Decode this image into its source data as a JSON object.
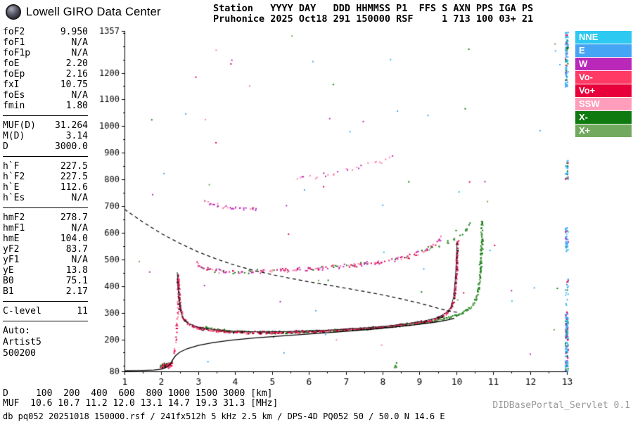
{
  "header": {
    "brand": "Lowell GIRO Data Center",
    "columns_line": "Station   YYYY DAY   DDD HHMMSS P1  FFS S AXN PPS IGA PS",
    "values_line": "Pruhonice 2025 Oct18 291 150000 RSF     1 713 100 03+ 21"
  },
  "params": {
    "groups": [
      {
        "rows": [
          [
            "foF2",
            "9.950"
          ],
          [
            "foF1",
            "N/A"
          ],
          [
            "foF1p",
            "N/A"
          ],
          [
            "foE",
            "2.20"
          ],
          [
            "foEp",
            "2.16"
          ],
          [
            "fxI",
            "10.75"
          ],
          [
            "foEs",
            "N/A"
          ],
          [
            "fmin",
            "1.80"
          ]
        ]
      },
      {
        "rows": [
          [
            "MUF(D)",
            "31.264"
          ],
          [
            "M(D)",
            "3.14"
          ],
          [
            "D",
            "3000.0"
          ]
        ]
      },
      {
        "rows": [
          [
            "h`F",
            "227.5"
          ],
          [
            "h`F2",
            "227.5"
          ],
          [
            "h`E",
            "112.6"
          ],
          [
            "h`Es",
            "N/A"
          ]
        ]
      },
      {
        "rows": [
          [
            "hmF2",
            "278.7"
          ],
          [
            "hmF1",
            "N/A"
          ],
          [
            "hmE",
            "104.0"
          ],
          [
            "yF2",
            "83.7"
          ],
          [
            "yF1",
            "N/A"
          ],
          [
            "yE",
            "13.8"
          ],
          [
            "B0",
            "75.1"
          ],
          [
            "B1",
            "2.17"
          ]
        ]
      },
      {
        "rows": [
          [
            "C-level",
            "11"
          ]
        ]
      }
    ],
    "auto_label": "Auto:",
    "auto_lines": [
      "Artist5",
      "500200"
    ]
  },
  "legend": [
    {
      "label": "NNE",
      "color": "#2ec9f0"
    },
    {
      "label": "E",
      "color": "#46a4f5"
    },
    {
      "label": "W",
      "color": "#b928b9"
    },
    {
      "label": "Vo-",
      "color": "#ff3a64"
    },
    {
      "label": "Vo+",
      "color": "#e8003a"
    },
    {
      "label": "SSW",
      "color": "#ff9dbb"
    },
    {
      "label": "X-",
      "color": "#0f7a0f"
    },
    {
      "label": "X+",
      "color": "#71a95e"
    }
  ],
  "footer": {
    "d_line": "D     100  200  400  600  800 1000 1500 3000 [km]",
    "muf_line": "MUF  10.6 10.7 11.2 12.0 13.1 14.7 19.3 31.3 [MHz]",
    "status": "db pq052 20251018 150000.rsf / 241fx512h 5 kHz 2.5 km / DPS-4D PQ052 50 / 50.0 N 14.6 E",
    "servlet": "DIDBasePortal_Servlet 0.1"
  },
  "chart_data": {
    "type": "scatter",
    "title": "Pruhonice ionogram 2025 Oct18 291 150000",
    "xlabel": "[MHz]",
    "ylabel": "[km]",
    "grid": false,
    "legend_position": "right",
    "x_axis": {
      "min": 1,
      "max": 13,
      "ticks": [
        1,
        2,
        3,
        4,
        5,
        6,
        7,
        8,
        9,
        10,
        11,
        12,
        13
      ],
      "minor_step": 0.5
    },
    "y_axis": {
      "min": 80,
      "max": 1357,
      "ticks": [
        80,
        200,
        300,
        400,
        500,
        600,
        700,
        800,
        900,
        1000,
        1100,
        1200,
        1357
      ],
      "minor_step": 50
    },
    "key_values": {
      "foF2_mhz": 9.95,
      "fxI_mhz": 10.75,
      "hmF2_km": 278.7,
      "h_F_km": 227.5,
      "MUF3000_mhz": 31.264
    },
    "traces": [
      {
        "name": "background-noise",
        "mode": "noise",
        "count": 65,
        "size": 2,
        "xrange": [
          1.05,
          12.85
        ],
        "yrange": [
          85,
          1345
        ],
        "colors": {
          "#3fa9ff": 0.22,
          "#29c5f1": 0.1,
          "#0f7a0f": 0.13,
          "#6aa95a": 0.1,
          "#e10040": 0.15,
          "#ff7ea6": 0.12,
          "#b928b9": 0.18
        }
      },
      {
        "name": "rfi-column-13mhz",
        "mode": "vstrip",
        "x": 12.98,
        "colors": {
          "#3fa9ff": 0.52,
          "#29c5f1": 0.18,
          "#0f7a0f": 0.15,
          "#e10040": 0.08,
          "#b928b9": 0.07
        },
        "segments": [
          [
            80,
            305,
            1.6
          ],
          [
            310,
            430,
            0.35
          ],
          [
            530,
            625,
            1.0
          ],
          [
            800,
            875,
            1.0
          ],
          [
            1150,
            1357,
            1.3
          ]
        ]
      },
      {
        "name": "f-trace-second-order",
        "mode": "scatter",
        "spread": 3.5,
        "density": 1.1,
        "size": 2,
        "colors": {
          "#ff7ea6": 0.3,
          "#e10040": 0.22,
          "#b928b9": 0.33,
          "#0f7a0f": 0.15
        },
        "points": [
          [
            2.92,
            492
          ],
          [
            3.0,
            478
          ],
          [
            3.15,
            468
          ],
          [
            3.4,
            461
          ],
          [
            3.8,
            457
          ],
          [
            4.3,
            456
          ],
          [
            4.9,
            458
          ],
          [
            5.5,
            462
          ],
          [
            6.1,
            467
          ],
          [
            6.7,
            474
          ],
          [
            7.3,
            482
          ],
          [
            7.8,
            491
          ],
          [
            8.2,
            500
          ],
          [
            8.6,
            511
          ],
          [
            8.9,
            523
          ],
          [
            9.15,
            537
          ],
          [
            9.35,
            553
          ],
          [
            9.5,
            572
          ],
          [
            9.6,
            590
          ]
        ]
      },
      {
        "name": "x-trace-second-order",
        "mode": "scatter",
        "spread": 3,
        "density": 0.5,
        "size": 2,
        "colors": {
          "#0f7a0f": 0.6,
          "#6aa95a": 0.4
        },
        "points": [
          [
            9.0,
            532
          ],
          [
            9.4,
            548
          ],
          [
            9.8,
            568
          ],
          [
            10.1,
            592
          ],
          [
            10.3,
            622
          ],
          [
            10.45,
            652
          ]
        ]
      },
      {
        "name": "third-order-cluster",
        "mode": "scatter",
        "spread": 3,
        "density": 0.9,
        "size": 2,
        "colors": {
          "#b928b9": 0.65,
          "#ff7ea6": 0.35
        },
        "points": [
          [
            3.15,
            722
          ],
          [
            3.35,
            710
          ],
          [
            3.6,
            701
          ],
          [
            3.9,
            696
          ],
          [
            4.25,
            693
          ],
          [
            4.6,
            692
          ]
        ]
      },
      {
        "name": "high-order-sparse",
        "mode": "scatter",
        "spread": 4,
        "density": 0.35,
        "size": 2,
        "colors": {
          "#ff7ea6": 0.5,
          "#b928b9": 0.5
        },
        "points": [
          [
            5.6,
            800
          ],
          [
            6.1,
            812
          ],
          [
            6.6,
            825
          ],
          [
            7.1,
            840
          ],
          [
            7.6,
            858
          ],
          [
            8.0,
            875
          ],
          [
            8.3,
            893
          ]
        ]
      },
      {
        "name": "f-cusp-spread",
        "mode": "scatter",
        "spread": 3,
        "density": 0.8,
        "size": 2,
        "colors": {
          "#ff7ea6": 0.55,
          "#e10040": 0.45
        },
        "points": [
          [
            2.33,
            150
          ],
          [
            2.37,
            200
          ],
          [
            2.4,
            255
          ],
          [
            2.42,
            310
          ],
          [
            2.44,
            370
          ],
          [
            2.45,
            430
          ]
        ]
      },
      {
        "name": "e-layer-echo",
        "mode": "scatter",
        "spread": 5,
        "density": 7,
        "size": 2,
        "colors": {
          "#e10040": 0.45,
          "#ff4d75": 0.2,
          "#0f7a0f": 0.2,
          "#111111": 0.15
        },
        "points": [
          [
            1.95,
            104
          ],
          [
            2.05,
            103
          ],
          [
            2.15,
            104
          ],
          [
            2.22,
            107
          ],
          [
            2.28,
            112
          ]
        ]
      },
      {
        "name": "sporadic-echo-8mhz",
        "mode": "scatter",
        "spread": 4,
        "density": 1.5,
        "size": 2,
        "colors": {
          "#0f7a0f": 0.7,
          "#6aa95a": 0.3
        },
        "points": [
          [
            8.28,
            92
          ],
          [
            8.33,
            100
          ],
          [
            8.38,
            110
          ]
        ]
      },
      {
        "name": "x-trace-first-order",
        "mode": "scatter",
        "spread": 2,
        "density": 1.7,
        "size": 2,
        "colors": {
          "#0f7a0f": 0.62,
          "#6aa95a": 0.38
        },
        "points": [
          [
            3.05,
            250
          ],
          [
            3.3,
            243
          ],
          [
            3.6,
            237
          ],
          [
            4.0,
            232
          ],
          [
            4.5,
            229
          ],
          [
            5.1,
            228
          ],
          [
            5.7,
            230
          ],
          [
            6.3,
            233
          ],
          [
            6.9,
            237
          ],
          [
            7.5,
            242
          ],
          [
            8.0,
            248
          ],
          [
            8.5,
            255
          ],
          [
            9.0,
            263
          ],
          [
            9.4,
            272
          ],
          [
            9.8,
            284
          ],
          [
            10.1,
            298
          ],
          [
            10.3,
            314
          ],
          [
            10.45,
            334
          ],
          [
            10.55,
            362
          ],
          [
            10.6,
            400
          ],
          [
            10.63,
            445
          ],
          [
            10.65,
            495
          ],
          [
            10.67,
            550
          ],
          [
            10.68,
            605
          ],
          [
            10.69,
            645
          ]
        ]
      },
      {
        "name": "o-trace-first-order",
        "mode": "scatter",
        "spread": 2.2,
        "density": 2.2,
        "size": 2,
        "colors": {
          "#e10040": 0.5,
          "#ff4d75": 0.22,
          "#f03f9f": 0.1,
          "#111111": 0.18
        },
        "points": [
          [
            2.43,
            450
          ],
          [
            2.45,
            400
          ],
          [
            2.47,
            355
          ],
          [
            2.5,
            320
          ],
          [
            2.55,
            292
          ],
          [
            2.62,
            272
          ],
          [
            2.72,
            260
          ],
          [
            2.85,
            251
          ],
          [
            3.0,
            245
          ],
          [
            3.2,
            239
          ],
          [
            3.5,
            234
          ],
          [
            3.9,
            230
          ],
          [
            4.4,
            228
          ],
          [
            5.0,
            228
          ],
          [
            5.6,
            230
          ],
          [
            6.2,
            233
          ],
          [
            6.8,
            237
          ],
          [
            7.4,
            242
          ],
          [
            7.9,
            247
          ],
          [
            8.4,
            254
          ],
          [
            8.8,
            261
          ],
          [
            9.1,
            268
          ],
          [
            9.35,
            276
          ],
          [
            9.55,
            286
          ],
          [
            9.7,
            297
          ],
          [
            9.8,
            310
          ],
          [
            9.87,
            327
          ],
          [
            9.92,
            350
          ],
          [
            9.95,
            380
          ],
          [
            9.97,
            415
          ],
          [
            9.99,
            455
          ],
          [
            10.0,
            500
          ],
          [
            10.01,
            545
          ],
          [
            10.02,
            570
          ]
        ]
      },
      {
        "name": "muf-transmission-curve",
        "mode": "line",
        "color": "#000000",
        "width": 1.2,
        "dash": [
          5,
          4
        ],
        "points": [
          [
            1.0,
            688
          ],
          [
            1.5,
            640
          ],
          [
            2.0,
            597
          ],
          [
            2.5,
            560
          ],
          [
            3.0,
            528
          ],
          [
            3.5,
            501
          ],
          [
            4.0,
            478
          ],
          [
            4.5,
            459
          ],
          [
            5.0,
            443
          ],
          [
            5.5,
            429
          ],
          [
            6.0,
            416
          ],
          [
            6.5,
            404
          ],
          [
            7.0,
            392
          ],
          [
            7.5,
            380
          ],
          [
            8.0,
            367
          ],
          [
            8.5,
            352
          ],
          [
            9.0,
            336
          ],
          [
            9.3,
            325
          ],
          [
            9.6,
            313
          ],
          [
            9.9,
            304
          ],
          [
            10.05,
            301
          ]
        ]
      },
      {
        "name": "electron-density-profile",
        "mode": "line",
        "color": "#000000",
        "width": 1.3,
        "points": [
          [
            1.0,
            82
          ],
          [
            1.4,
            83
          ],
          [
            1.8,
            85
          ],
          [
            2.0,
            88
          ],
          [
            2.1,
            93
          ],
          [
            2.18,
            99
          ],
          [
            2.22,
            104
          ],
          [
            2.26,
            110
          ],
          [
            2.3,
            122
          ],
          [
            2.38,
            138
          ],
          [
            2.5,
            152
          ],
          [
            2.7,
            165
          ],
          [
            3.0,
            177
          ],
          [
            3.4,
            188
          ],
          [
            3.9,
            197
          ],
          [
            4.5,
            205
          ],
          [
            5.2,
            212
          ],
          [
            6.0,
            220
          ],
          [
            6.8,
            228
          ],
          [
            7.6,
            237
          ],
          [
            8.3,
            246
          ],
          [
            8.9,
            255
          ],
          [
            9.4,
            264
          ],
          [
            9.7,
            271
          ],
          [
            9.87,
            276
          ],
          [
            9.95,
            279
          ]
        ]
      },
      {
        "name": "artist-trace-fit",
        "mode": "line",
        "color": "#222222",
        "width": 1,
        "points": [
          [
            2.43,
            452
          ],
          [
            2.47,
            362
          ],
          [
            2.52,
            306
          ],
          [
            2.6,
            276
          ],
          [
            2.75,
            258
          ],
          [
            3.0,
            246
          ],
          [
            3.4,
            237
          ],
          [
            4.0,
            230
          ],
          [
            4.8,
            228
          ],
          [
            5.6,
            230
          ],
          [
            6.4,
            234
          ],
          [
            7.2,
            240
          ],
          [
            8.0,
            248
          ],
          [
            8.6,
            258
          ],
          [
            9.1,
            268
          ],
          [
            9.45,
            280
          ],
          [
            9.7,
            297
          ],
          [
            9.85,
            320
          ],
          [
            9.93,
            360
          ],
          [
            9.97,
            420
          ],
          [
            10.0,
            490
          ],
          [
            10.02,
            565
          ]
        ]
      }
    ]
  }
}
